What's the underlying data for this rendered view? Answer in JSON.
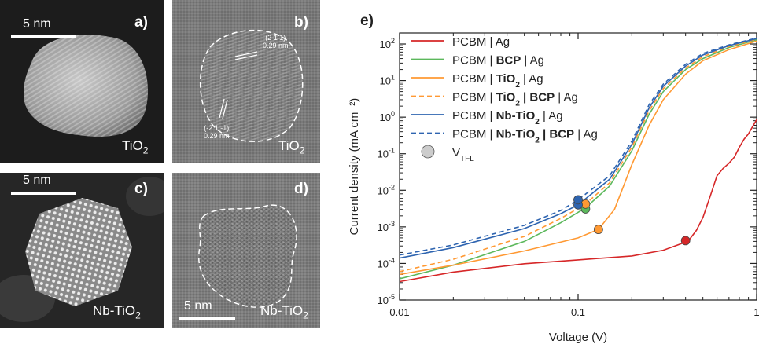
{
  "panels": {
    "a": {
      "label": "a)",
      "material_main": "TiO",
      "material_sub": "2",
      "scale_text": "5 nm"
    },
    "b": {
      "label": "b)",
      "material_main": "TiO",
      "material_sub": "2",
      "plane1": "(2 1 1)",
      "spacing1": "0.29 nm",
      "plane2": "(-2 1 -1)",
      "spacing2": "0.29 nm"
    },
    "c": {
      "label": "c)",
      "material_main": "Nb-TiO",
      "material_sub": "2",
      "scale_text": "5 nm"
    },
    "d": {
      "label": "d)",
      "material_main": "Nb-TiO",
      "material_sub": "2",
      "scale_text": "5 nm"
    }
  },
  "chart_data": {
    "type": "line",
    "panel_label": "e)",
    "xlabel": "Voltage (V)",
    "ylabel": "Current density (mA cm⁻²)",
    "x_scale": "log",
    "y_scale": "log",
    "xlim": [
      0.01,
      1
    ],
    "ylim": [
      1e-05,
      200
    ],
    "x_ticks": [
      {
        "v": 0.01,
        "label": "0.01"
      },
      {
        "v": 0.1,
        "label": "0.1"
      },
      {
        "v": 1,
        "label": "1"
      }
    ],
    "y_ticks": [
      {
        "v": 1e-05,
        "m": "10",
        "e": "-5"
      },
      {
        "v": 0.0001,
        "m": "10",
        "e": "-4"
      },
      {
        "v": 0.001,
        "m": "10",
        "e": "-3"
      },
      {
        "v": 0.01,
        "m": "10",
        "e": "-2"
      },
      {
        "v": 0.1,
        "m": "10",
        "e": "-1"
      },
      {
        "v": 1,
        "m": "10",
        "e": "0"
      },
      {
        "v": 10,
        "m": "10",
        "e": "1"
      },
      {
        "v": 100,
        "m": "10",
        "e": "2"
      }
    ],
    "grid": false,
    "legend_position": "top-left",
    "series": [
      {
        "name": "PCBM | Ag",
        "legend_parts": [
          {
            "t": "PCBM | Ag"
          }
        ],
        "color": "#d62728",
        "dash": false,
        "x": [
          0.01,
          0.02,
          0.05,
          0.1,
          0.2,
          0.3,
          0.38,
          0.42,
          0.46,
          0.5,
          0.55,
          0.6,
          0.65,
          0.7,
          0.75,
          0.8,
          0.85,
          0.9,
          0.95,
          1.0
        ],
        "y": [
          3.2e-05,
          5.8e-05,
          9.8e-05,
          0.000125,
          0.00016,
          0.00023,
          0.00035,
          0.00045,
          0.0008,
          0.0018,
          0.007,
          0.025,
          0.04,
          0.055,
          0.08,
          0.15,
          0.25,
          0.35,
          0.55,
          0.85
        ],
        "vtfl": {
          "x": 0.4,
          "y": 0.00042
        }
      },
      {
        "name": "PCBM | BCP | Ag",
        "legend_parts": [
          {
            "t": "PCBM | "
          },
          {
            "t": "BCP",
            "b": true
          },
          {
            "t": " | Ag"
          }
        ],
        "color": "#5cb85c",
        "dash": false,
        "x": [
          0.01,
          0.02,
          0.05,
          0.08,
          0.11,
          0.15,
          0.2,
          0.25,
          0.3,
          0.4,
          0.5,
          0.7,
          1.0
        ],
        "y": [
          3.8e-05,
          9e-05,
          0.0004,
          0.0013,
          0.0033,
          0.013,
          0.12,
          1.2,
          5,
          20,
          40,
          80,
          130
        ],
        "vtfl": {
          "x": 0.11,
          "y": 0.0031
        }
      },
      {
        "name": "PCBM | TiO2 | Ag",
        "legend_parts": [
          {
            "t": "PCBM | "
          },
          {
            "t": "TiO",
            "b": true
          },
          {
            "t": "2",
            "b": true,
            "sub": true
          },
          {
            "t": " | Ag"
          }
        ],
        "color": "#ff9933",
        "dash": false,
        "x": [
          0.01,
          0.02,
          0.05,
          0.1,
          0.13,
          0.16,
          0.2,
          0.25,
          0.3,
          0.4,
          0.5,
          0.7,
          1.0
        ],
        "y": [
          5e-05,
          9e-05,
          0.00022,
          0.0005,
          0.00085,
          0.003,
          0.05,
          0.6,
          3,
          15,
          35,
          70,
          120
        ],
        "vtfl": {
          "x": 0.13,
          "y": 0.00085
        }
      },
      {
        "name": "PCBM | TiO2 | BCP | Ag",
        "legend_parts": [
          {
            "t": "PCBM | "
          },
          {
            "t": "TiO",
            "b": true
          },
          {
            "t": "2",
            "b": true,
            "sub": true
          },
          {
            "t": " | BCP",
            "b": true
          },
          {
            "t": " | Ag"
          }
        ],
        "color": "#ff9933",
        "dash": true,
        "x": [
          0.01,
          0.02,
          0.05,
          0.08,
          0.11,
          0.15,
          0.2,
          0.25,
          0.3,
          0.4,
          0.5,
          0.7,
          1.0
        ],
        "y": [
          6e-05,
          0.00013,
          0.00055,
          0.0017,
          0.0042,
          0.016,
          0.15,
          1.5,
          6,
          22,
          45,
          85,
          135
        ],
        "vtfl": {
          "x": 0.11,
          "y": 0.0042
        }
      },
      {
        "name": "PCBM | Nb-TiO2 | Ag",
        "legend_parts": [
          {
            "t": "PCBM | "
          },
          {
            "t": "Nb-TiO",
            "b": true
          },
          {
            "t": "2",
            "b": true,
            "sub": true
          },
          {
            "t": " | Ag"
          }
        ],
        "color": "#2e64b0",
        "dash": false,
        "x": [
          0.01,
          0.02,
          0.05,
          0.08,
          0.1,
          0.15,
          0.2,
          0.25,
          0.3,
          0.4,
          0.5,
          0.7,
          1.0
        ],
        "y": [
          0.00014,
          0.00027,
          0.0009,
          0.0023,
          0.004,
          0.02,
          0.18,
          1.8,
          7,
          25,
          50,
          90,
          140
        ],
        "vtfl": {
          "x": 0.1,
          "y": 0.004
        }
      },
      {
        "name": "PCBM | Nb-TiO2 | BCP | Ag",
        "legend_parts": [
          {
            "t": "PCBM | "
          },
          {
            "t": "Nb-TiO",
            "b": true
          },
          {
            "t": "2",
            "b": true,
            "sub": true
          },
          {
            "t": " | BCP",
            "b": true
          },
          {
            "t": " | Ag"
          }
        ],
        "color": "#2e64b0",
        "dash": true,
        "x": [
          0.01,
          0.02,
          0.05,
          0.08,
          0.1,
          0.15,
          0.2,
          0.25,
          0.3,
          0.4,
          0.5,
          0.7,
          1.0
        ],
        "y": [
          0.00017,
          0.00032,
          0.0011,
          0.0028,
          0.0055,
          0.025,
          0.22,
          2.2,
          8,
          28,
          55,
          95,
          145
        ],
        "vtfl": {
          "x": 0.1,
          "y": 0.0055
        }
      }
    ],
    "marker_legend": {
      "main": "V",
      "sub": "TFL",
      "color": "#cccccc"
    }
  }
}
